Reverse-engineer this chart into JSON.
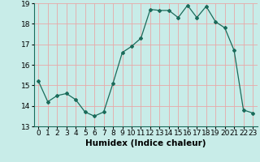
{
  "x": [
    0,
    1,
    2,
    3,
    4,
    5,
    6,
    7,
    8,
    9,
    10,
    11,
    12,
    13,
    14,
    15,
    16,
    17,
    18,
    19,
    20,
    21,
    22,
    23
  ],
  "y": [
    15.2,
    14.2,
    14.5,
    14.6,
    14.3,
    13.7,
    13.5,
    13.7,
    15.1,
    16.6,
    16.9,
    17.3,
    18.7,
    18.65,
    18.65,
    18.3,
    18.9,
    18.3,
    18.85,
    18.1,
    17.8,
    16.7,
    13.8,
    13.65
  ],
  "xlim": [
    -0.5,
    23.5
  ],
  "ylim": [
    13,
    19
  ],
  "yticks": [
    13,
    14,
    15,
    16,
    17,
    18,
    19
  ],
  "xticks": [
    0,
    1,
    2,
    3,
    4,
    5,
    6,
    7,
    8,
    9,
    10,
    11,
    12,
    13,
    14,
    15,
    16,
    17,
    18,
    19,
    20,
    21,
    22,
    23
  ],
  "xlabel": "Humidex (Indice chaleur)",
  "line_color": "#1a6b5a",
  "marker": "D",
  "marker_size": 2,
  "bg_color": "#c8ece8",
  "grid_color": "#e8a8a8",
  "xlabel_fontsize": 7.5,
  "tick_fontsize": 6.5
}
